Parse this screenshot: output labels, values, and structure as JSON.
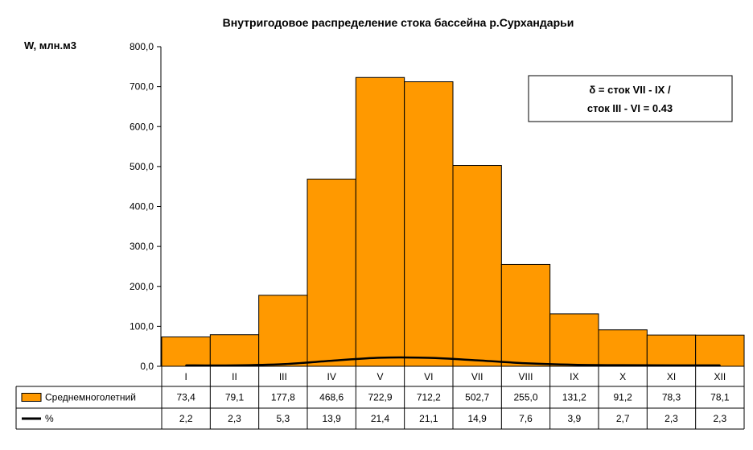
{
  "chart_data": {
    "type": "bar",
    "title": "Внутригодовое распределение стока бассейна р.Сурхандарьи",
    "ylabel": "W, млн.м3",
    "xlabel": "",
    "ylim": [
      0,
      800
    ],
    "yticks": [
      "0,0",
      "100,0",
      "200,0",
      "300,0",
      "400,0",
      "500,0",
      "600,0",
      "700,0",
      "800,0"
    ],
    "ytick_values": [
      0,
      100,
      200,
      300,
      400,
      500,
      600,
      700,
      800
    ],
    "grid": false,
    "categories": [
      "I",
      "II",
      "III",
      "IV",
      "V",
      "VI",
      "VII",
      "VIII",
      "IX",
      "X",
      "XI",
      "XII"
    ],
    "series": [
      {
        "name": "Среднемноголетний",
        "type": "bar",
        "color": "#FF9900",
        "values": [
          73.4,
          79.1,
          177.8,
          468.6,
          722.9,
          712.2,
          502.7,
          255.0,
          131.2,
          91.2,
          78.3,
          78.1
        ],
        "labels": [
          "73,4",
          "79,1",
          "177,8",
          "468,6",
          "722,9",
          "712,2",
          "502,7",
          "255,0",
          "131,2",
          "91,2",
          "78,3",
          "78,1"
        ]
      },
      {
        "name": "%",
        "type": "line",
        "color": "#000000",
        "values": [
          2.2,
          2.3,
          5.3,
          13.9,
          21.4,
          21.1,
          14.9,
          7.6,
          3.9,
          2.7,
          2.3,
          2.3
        ],
        "labels": [
          "2,2",
          "2,3",
          "5,3",
          "13,9",
          "21,4",
          "21,1",
          "14,9",
          "7,6",
          "3,9",
          "2,7",
          "2,3",
          "2,3"
        ]
      }
    ],
    "annotation": {
      "line1": "δ = сток VII - IX /",
      "line2": "сток III - VI = 0.43"
    },
    "legend": "data-table"
  }
}
